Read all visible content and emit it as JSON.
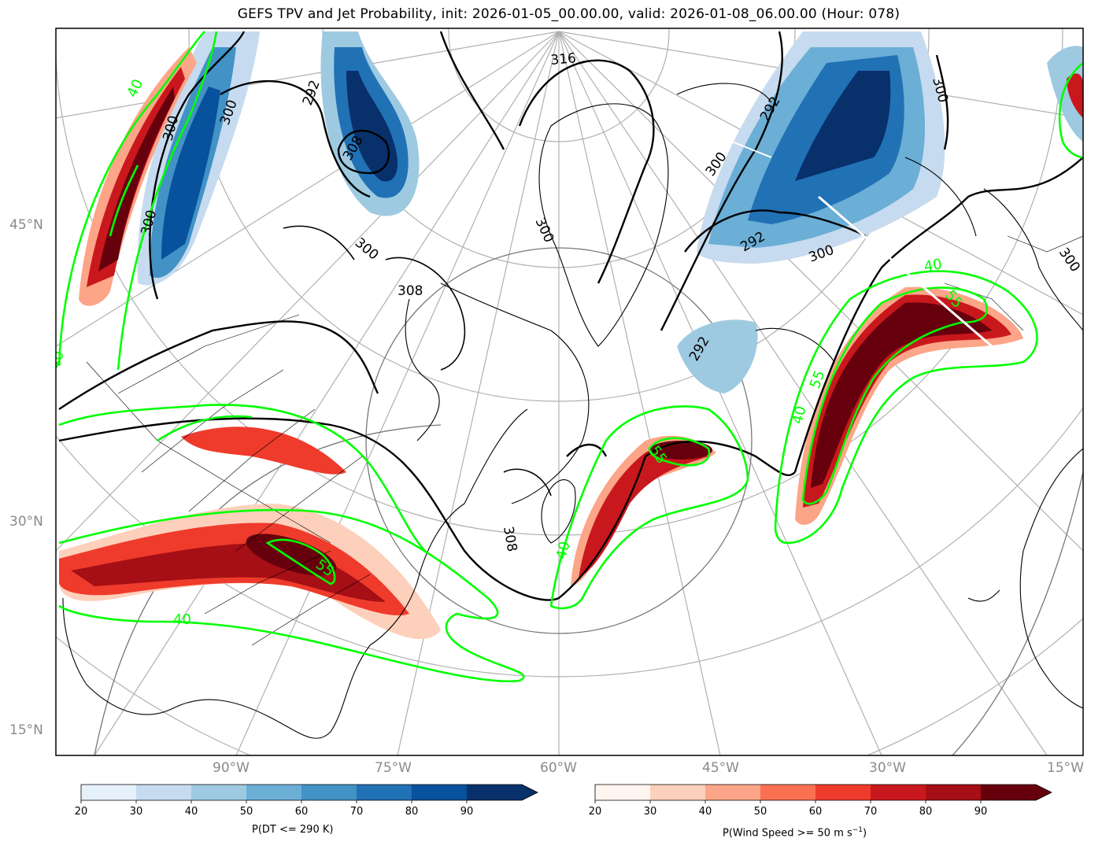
{
  "title": "GEFS TPV and Jet Probability, init: 2026-01-05_00.00.00, valid: 2026-01-08_06.00.00 (Hour: 078)",
  "lat_labels": [
    "45°N",
    "30°N",
    "15°N"
  ],
  "lon_labels": [
    "90°W",
    "75°W",
    "60°W",
    "45°W",
    "30°W",
    "15°W"
  ],
  "theta_contour_labels": [
    "316",
    "300",
    "300",
    "292",
    "308",
    "300",
    "308",
    "300",
    "300",
    "300",
    "292",
    "300",
    "292",
    "292",
    "300",
    "300",
    "308"
  ],
  "jet_contour_labels": [
    "40",
    "40",
    "55",
    "55",
    "40",
    "40",
    "55",
    "40",
    "55",
    "40"
  ],
  "colorbars": {
    "dt": {
      "label": "P(DT <= 290 K)",
      "ticks": [
        "20",
        "30",
        "40",
        "50",
        "60",
        "70",
        "80",
        "90"
      ],
      "colors": [
        "#e6f0fa",
        "#c6dbef",
        "#9ecae1",
        "#6baed6",
        "#4292c6",
        "#2171b5",
        "#08519c",
        "#08306b"
      ]
    },
    "wind": {
      "label_prefix": "P(Wind Speed >= 50 m s",
      "label_sup": "−1",
      "label_suffix": ")",
      "ticks": [
        "20",
        "30",
        "40",
        "50",
        "60",
        "70",
        "80",
        "90"
      ],
      "colors": [
        "#fff5f0",
        "#fdd0bb",
        "#fca588",
        "#fb7050",
        "#ef3b2c",
        "#c9181d",
        "#a50f15",
        "#67000d"
      ]
    }
  },
  "legend_colors": {
    "jet_contour": "#00ff00",
    "theta_contour": "#000000",
    "graticule": "#b0b0b0",
    "coastline": "#000000"
  }
}
